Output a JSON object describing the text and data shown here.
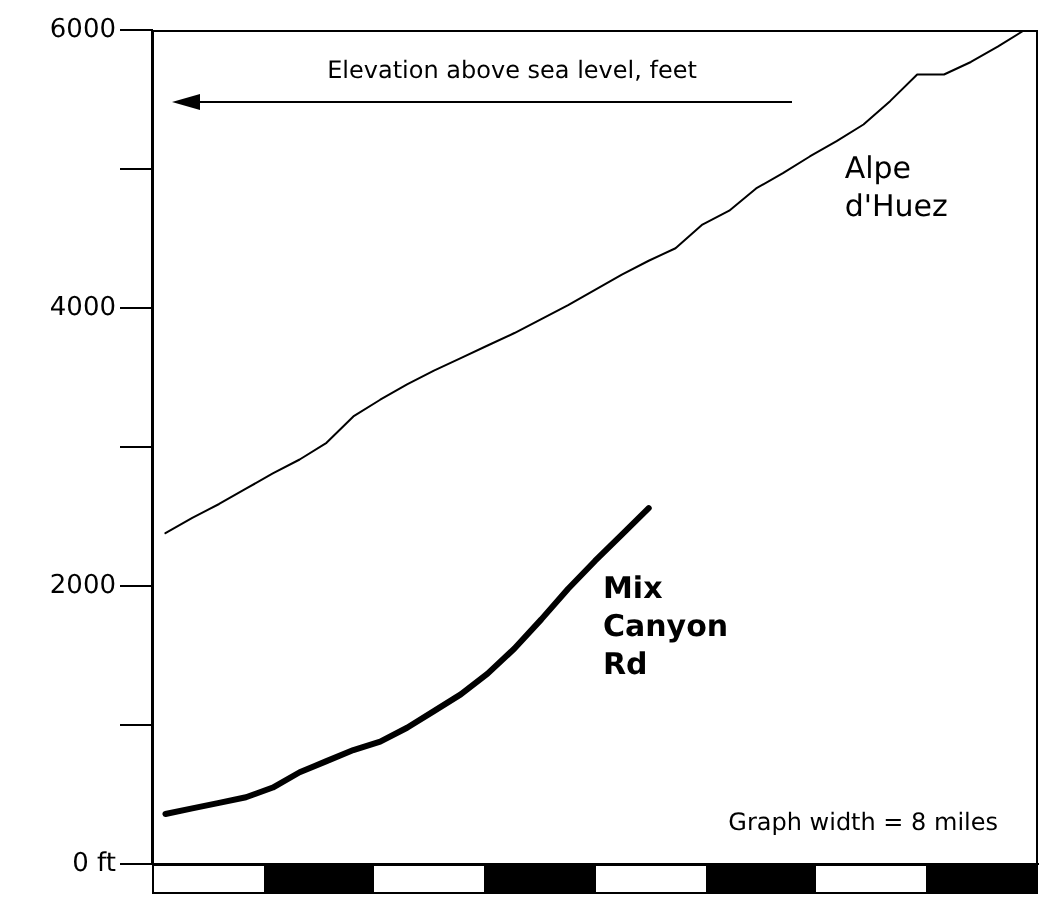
{
  "chart_data": {
    "type": "line",
    "ylabel": "Elevation above sea level, feet",
    "annotations": [
      "Graph width = 8 miles"
    ],
    "categories": [
      null,
      null,
      null,
      null,
      null,
      null,
      null,
      null,
      null,
      null,
      null,
      null,
      null,
      null,
      null,
      null,
      null,
      null,
      null,
      null,
      null,
      null,
      null,
      null,
      null,
      null,
      null,
      null,
      null,
      null,
      null,
      null,
      null
    ],
    "ylim": [
      0,
      6000
    ],
    "yticks": [
      {
        "value": 0,
        "label": "0 ft"
      },
      {
        "value": 1000,
        "label": null
      },
      2000,
      {
        "value": 3000,
        "label": null
      },
      4000,
      {
        "value": 5000,
        "label": null
      },
      6000
    ],
    "tick_labels": "y",
    "legend": false,
    "marker": "none",
    "line_style": "solid",
    "series": [
      {
        "name": "Alpe d'Huez",
        "color": "#000000",
        "values": [
          2380,
          2490,
          2590,
          2700,
          2810,
          2910,
          3030,
          3220,
          3340,
          3450,
          3550,
          3640,
          3730,
          3820,
          3920,
          4020,
          4130,
          4240,
          4340,
          4430,
          4600,
          4700,
          4860,
          4970,
          5090,
          5200,
          5320,
          5490,
          5680,
          5680,
          5770,
          5880,
          6000
        ]
      },
      {
        "name": "Mix Canyon Rd",
        "color": "#000000",
        "values": [
          360,
          400,
          440,
          480,
          550,
          660,
          740,
          820,
          880,
          980,
          1100,
          1220,
          1370,
          1550,
          1760,
          1980,
          2180,
          2370,
          2560,
          null,
          null,
          null,
          null,
          null,
          null,
          null,
          null,
          null,
          null,
          null,
          null,
          null,
          null
        ]
      }
    ]
  }
}
